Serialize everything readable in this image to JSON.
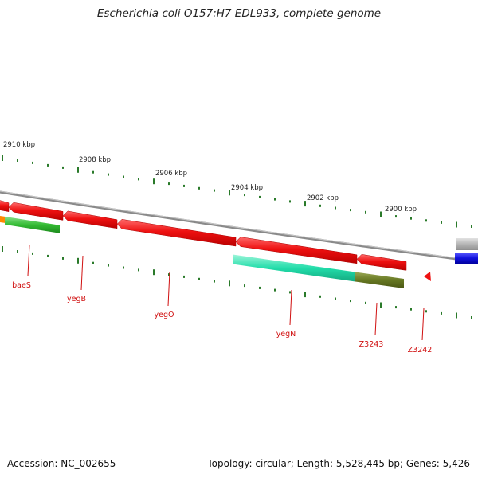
{
  "title": "Escherichia coli O157:H7 EDL933, complete genome",
  "footer": {
    "accession": "Accession: NC_002655",
    "summary": "Topology: circular; Length: 5,528,445 bp; Genes: 5,426"
  },
  "scale_ticks": [
    {
      "label": "2910 kbp"
    },
    {
      "label": "2908 kbp"
    },
    {
      "label": "2906 kbp"
    },
    {
      "label": "2904 kbp"
    },
    {
      "label": "2902 kbp"
    },
    {
      "label": "2900 kbp"
    }
  ],
  "genes": [
    {
      "label": "baeS"
    },
    {
      "label": "yegB"
    },
    {
      "label": "yegO"
    },
    {
      "label": "yegN"
    },
    {
      "label": "Z3243"
    },
    {
      "label": "Z3242"
    }
  ],
  "colors": {
    "backbone": "#8a8a8a",
    "gene_red": "#ee1111",
    "cog_green": "#33bb33",
    "cog_teal": "#22ddaa",
    "cog_olive": "#667722",
    "cog_blue": "#1111dd",
    "cog_gray": "#b5b5b5",
    "tick": "#2a7a2a",
    "label_red": "#d01010"
  }
}
